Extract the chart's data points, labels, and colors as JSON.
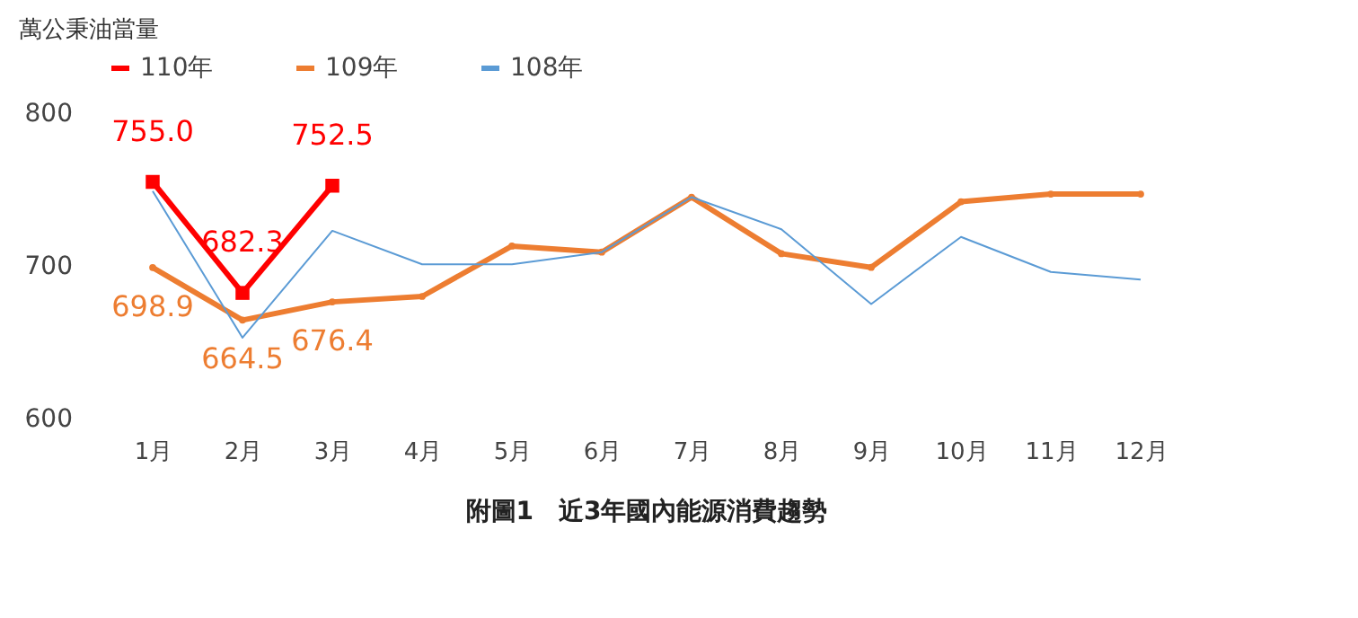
{
  "chart_data": {
    "type": "line",
    "title": "附圖1　近3年國內能源消費趨勢",
    "ylabel": "萬公秉油當量",
    "categories": [
      "1月",
      "2月",
      "3月",
      "4月",
      "5月",
      "6月",
      "7月",
      "8月",
      "9月",
      "10月",
      "11月",
      "12月"
    ],
    "ylim": [
      600,
      800
    ],
    "yticks": [
      600,
      700,
      800
    ],
    "grid": false,
    "legend": "top",
    "series": [
      {
        "name": "110年",
        "color": "#ff0000",
        "marker": "square",
        "values": [
          755.0,
          682.3,
          752.5,
          null,
          null,
          null,
          null,
          null,
          null,
          null,
          null,
          null
        ],
        "value_labels": [
          "755.0",
          "682.3",
          "752.5",
          null,
          null,
          null,
          null,
          null,
          null,
          null,
          null,
          null
        ]
      },
      {
        "name": "109年",
        "color": "#ed7d31",
        "marker": "circle",
        "values": [
          698.9,
          664.5,
          676.4,
          680,
          713,
          709,
          745,
          708,
          699,
          742,
          747,
          747
        ],
        "value_labels": [
          "698.9",
          "664.5",
          "676.4",
          null,
          null,
          null,
          null,
          null,
          null,
          null,
          null,
          null
        ]
      },
      {
        "name": "108年",
        "color": "#5b9bd5",
        "marker": "none",
        "values": [
          749,
          653,
          723,
          701,
          701,
          709,
          745,
          724,
          675,
          719,
          696,
          691
        ]
      }
    ]
  }
}
